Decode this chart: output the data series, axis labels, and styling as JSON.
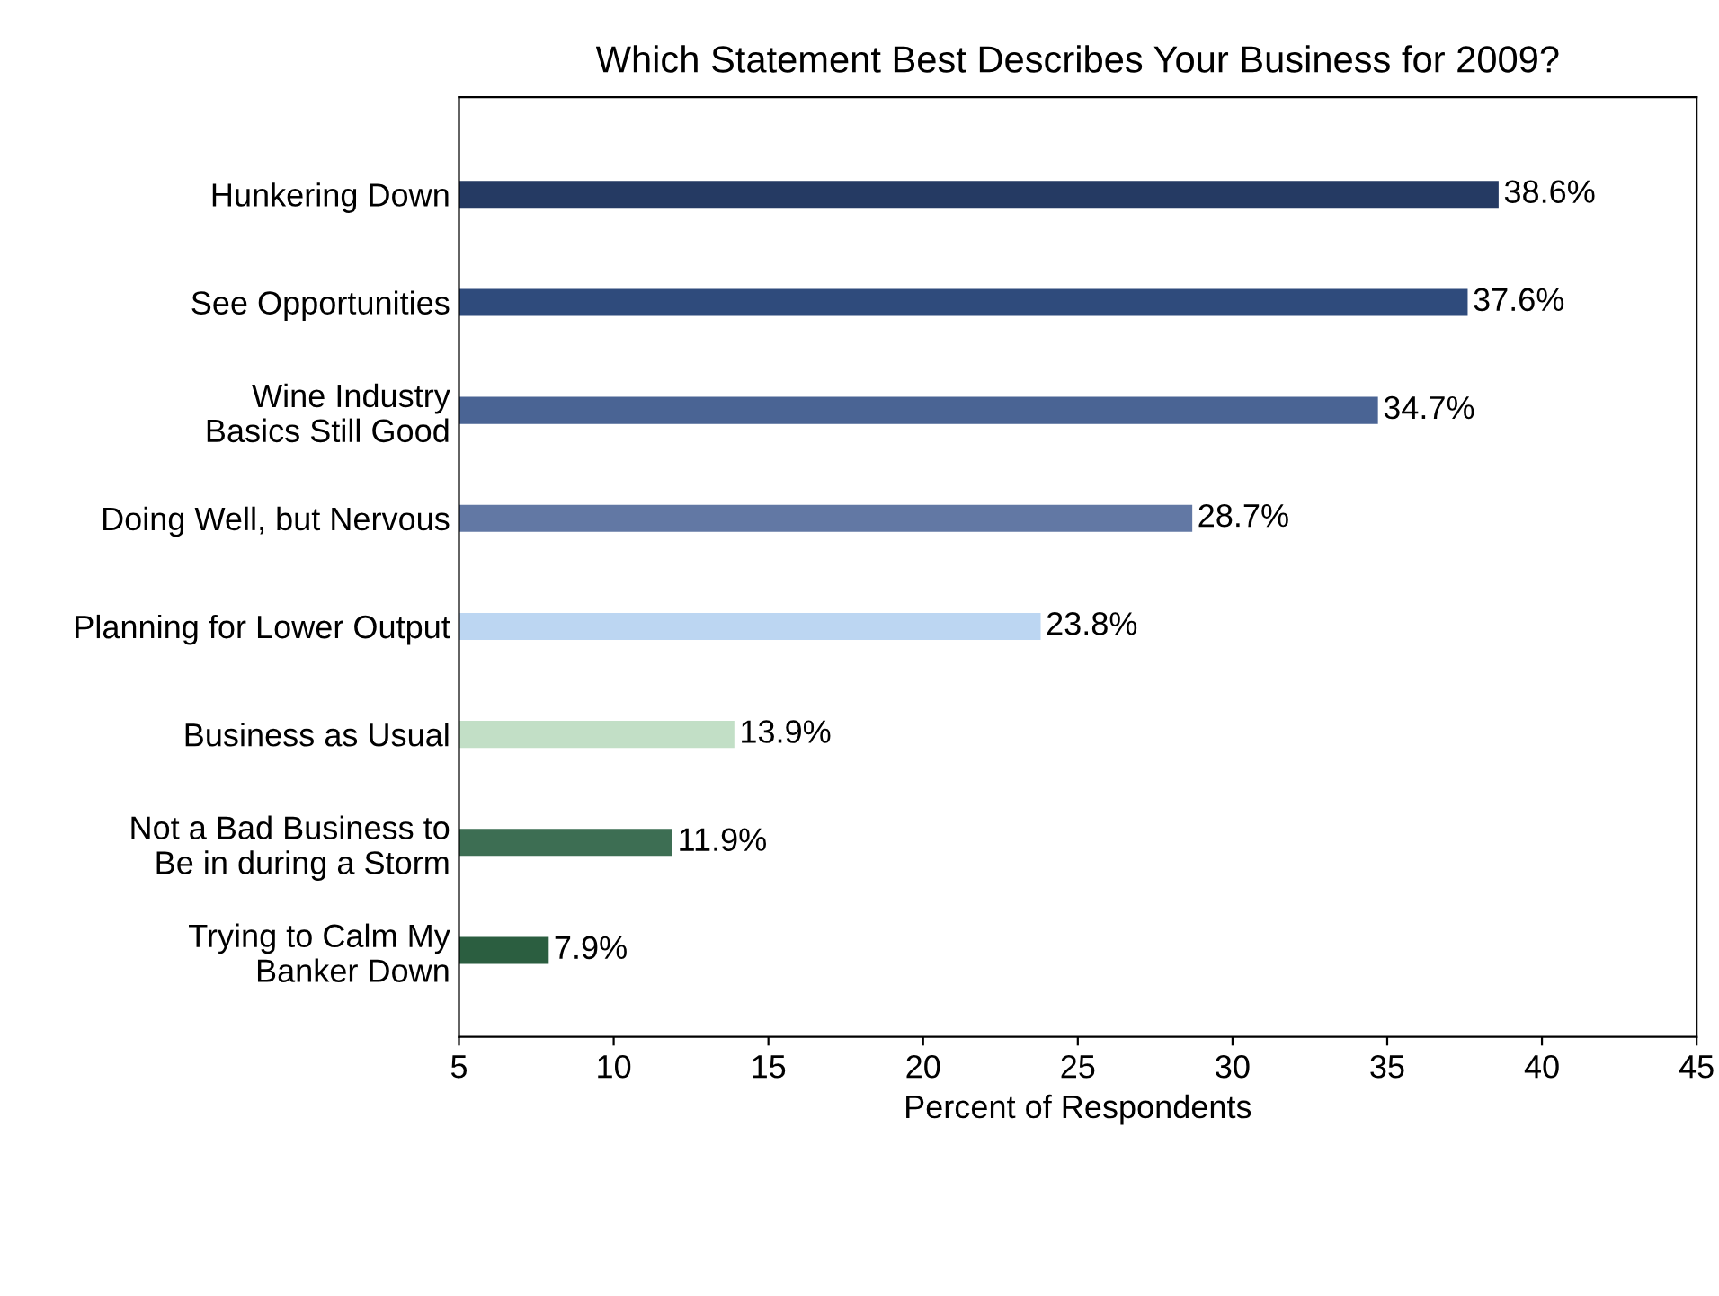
{
  "chart_data": {
    "type": "bar",
    "orientation": "horizontal",
    "title": "Which Statement Best Describes Your Business for 2009?",
    "xlabel": "Percent of Respondents",
    "categories": [
      "Hunkering Down",
      "See Opportunities",
      "Wine Industry\nBasics Still Good",
      "Doing Well, but Nervous",
      "Planning for Lower Output",
      "Business as Usual",
      "Not a Bad Business to\nBe in during a Storm",
      "Trying to Calm My\nBanker Down"
    ],
    "values": [
      38.6,
      37.6,
      34.7,
      28.7,
      23.8,
      13.9,
      11.9,
      7.9
    ],
    "colors": [
      "#253a63",
      "#2f4b7c",
      "#4a6494",
      "#6278a4",
      "#bcd6f2",
      "#c2dfc6",
      "#3d6e53",
      "#2b5e40"
    ],
    "value_labels": [
      "38.6%",
      "37.6%",
      "34.7%",
      "28.7%",
      "23.8%",
      "13.9%",
      "11.9%",
      "7.9%"
    ],
    "xlim": [
      5,
      45
    ],
    "xticks": [
      5,
      10,
      15,
      20,
      25,
      30,
      35,
      40,
      45
    ],
    "grid": false,
    "legend": false
  }
}
